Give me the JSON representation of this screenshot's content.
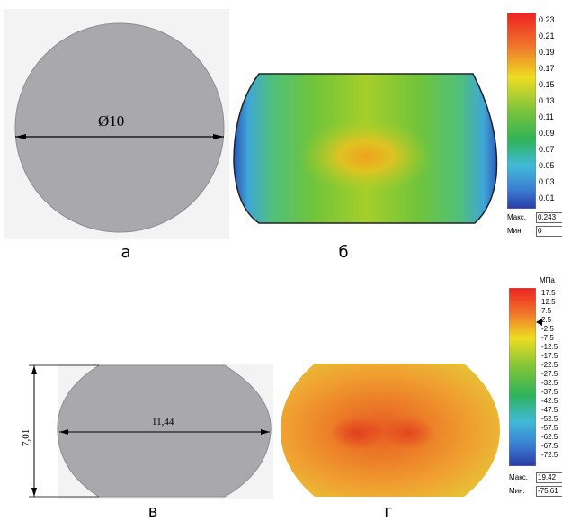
{
  "captions": {
    "a": "а",
    "b": "б",
    "v": "в",
    "g": "г"
  },
  "panel_a": {
    "dimension": "Ø10"
  },
  "panel_v": {
    "width": "11,44",
    "height": "7,01"
  },
  "legend_top": {
    "ticks": [
      "0.23",
      "0.21",
      "0.19",
      "0.17",
      "0.15",
      "0.13",
      "0.11",
      "0.09",
      "0.07",
      "0.05",
      "0.03",
      "0.01"
    ],
    "max_label": "Макс.",
    "max_value": "0.243",
    "min_label": "Мин.",
    "min_value": "0"
  },
  "legend_bottom": {
    "unit": "МПа",
    "ticks": [
      "17.5",
      "12.5",
      "7.5",
      "2.5",
      "-2.5",
      "-7.5",
      "-12.5",
      "-17.5",
      "-22.5",
      "-27.5",
      "-32.5",
      "-37.5",
      "-42.5",
      "-47.5",
      "-52.5",
      "-57.5",
      "-62.5",
      "-67.5",
      "-72.5"
    ],
    "max_label": "Макс.",
    "max_value": "19.42",
    "min_label": "Мин.",
    "min_value": "-75.61"
  },
  "colors": {
    "part_gray": "#a9a9ad",
    "panel_bg": "#f0f0f0"
  }
}
